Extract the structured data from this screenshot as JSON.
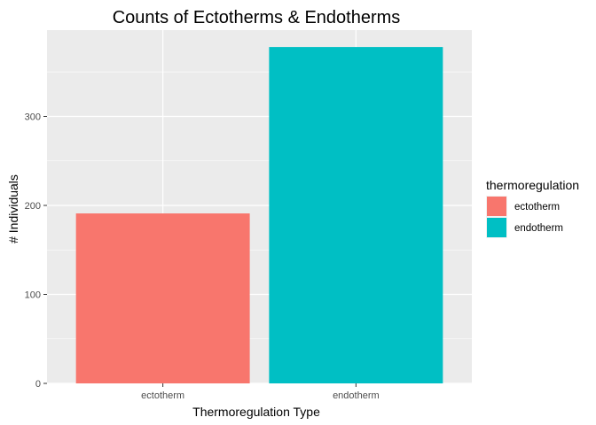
{
  "chart_data": {
    "type": "bar",
    "title": "Counts of Ectotherms & Endotherms",
    "xlabel": "Thermoregulation Type",
    "ylabel": "# Individuals",
    "categories": [
      "ectotherm",
      "endotherm"
    ],
    "values": [
      191,
      378
    ],
    "colors": [
      "#F8766D",
      "#00BFC4"
    ],
    "ylim": [
      0,
      397
    ],
    "yticks": [
      0,
      100,
      200,
      300
    ],
    "grid": true,
    "legend": {
      "title": "thermoregulation",
      "position": "right",
      "entries": [
        "ectotherm",
        "endotherm"
      ]
    }
  }
}
